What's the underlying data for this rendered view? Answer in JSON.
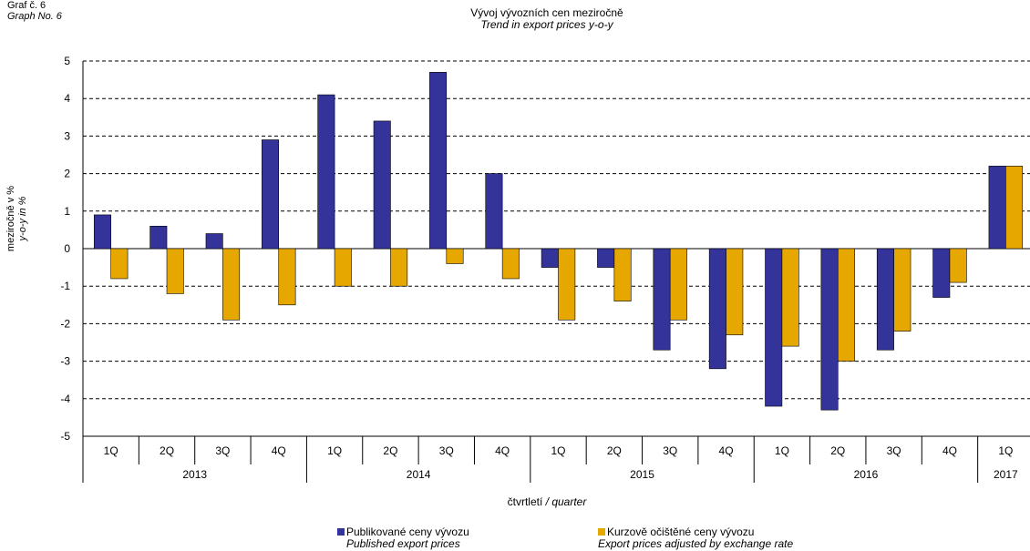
{
  "graph_label": {
    "cz": "Graf č. 6",
    "en": "Graph  No. 6"
  },
  "title": {
    "cz": "Vývoj vývozních  cen meziročně",
    "en": "Trend  in export prices y-o-y"
  },
  "ylabel": {
    "cz": "meziročně v %",
    "en": "y-o-y in %"
  },
  "xlabel": {
    "cz": "čtvrtletí",
    "en": "/ quarter"
  },
  "legend": [
    {
      "cz": "Publikované ceny vývozu",
      "en": "Published export prices"
    },
    {
      "cz": "Kurzově očištěné ceny vývozu",
      "en": "Export prices adjusted by exchange rate"
    }
  ],
  "colors": {
    "published": "#333399",
    "adjusted": "#e6a800"
  },
  "chart_data": {
    "type": "bar",
    "categories": [
      "1Q",
      "2Q",
      "3Q",
      "4Q",
      "1Q",
      "2Q",
      "3Q",
      "4Q",
      "1Q",
      "2Q",
      "3Q",
      "4Q",
      "1Q",
      "2Q",
      "3Q",
      "4Q",
      "1Q"
    ],
    "years": [
      {
        "label": "2013",
        "count": 4
      },
      {
        "label": "2014",
        "count": 4
      },
      {
        "label": "2015",
        "count": 4
      },
      {
        "label": "2016",
        "count": 4
      },
      {
        "label": "2017",
        "count": 1
      }
    ],
    "series": [
      {
        "name": "Publikované ceny vývozu",
        "values": [
          0.9,
          0.6,
          0.4,
          2.9,
          4.1,
          3.4,
          4.7,
          2.0,
          -0.5,
          -0.5,
          -2.7,
          -3.2,
          -4.2,
          -4.3,
          -2.7,
          -1.3,
          2.2
        ]
      },
      {
        "name": "Kurzově očištěné ceny vývozu",
        "values": [
          -0.8,
          -1.2,
          -1.9,
          -1.5,
          -1.0,
          -1.0,
          -0.4,
          -0.8,
          -1.9,
          -1.4,
          -1.9,
          -2.3,
          -2.6,
          -3.0,
          -2.2,
          -0.9,
          2.2
        ]
      }
    ],
    "ylim": [
      -5,
      5
    ],
    "yticks": [
      "5",
      "4",
      "3",
      "2",
      "1",
      "0",
      "-1",
      "-2",
      "-3",
      "-4",
      "-5"
    ],
    "grid": "dashed horizontal"
  }
}
